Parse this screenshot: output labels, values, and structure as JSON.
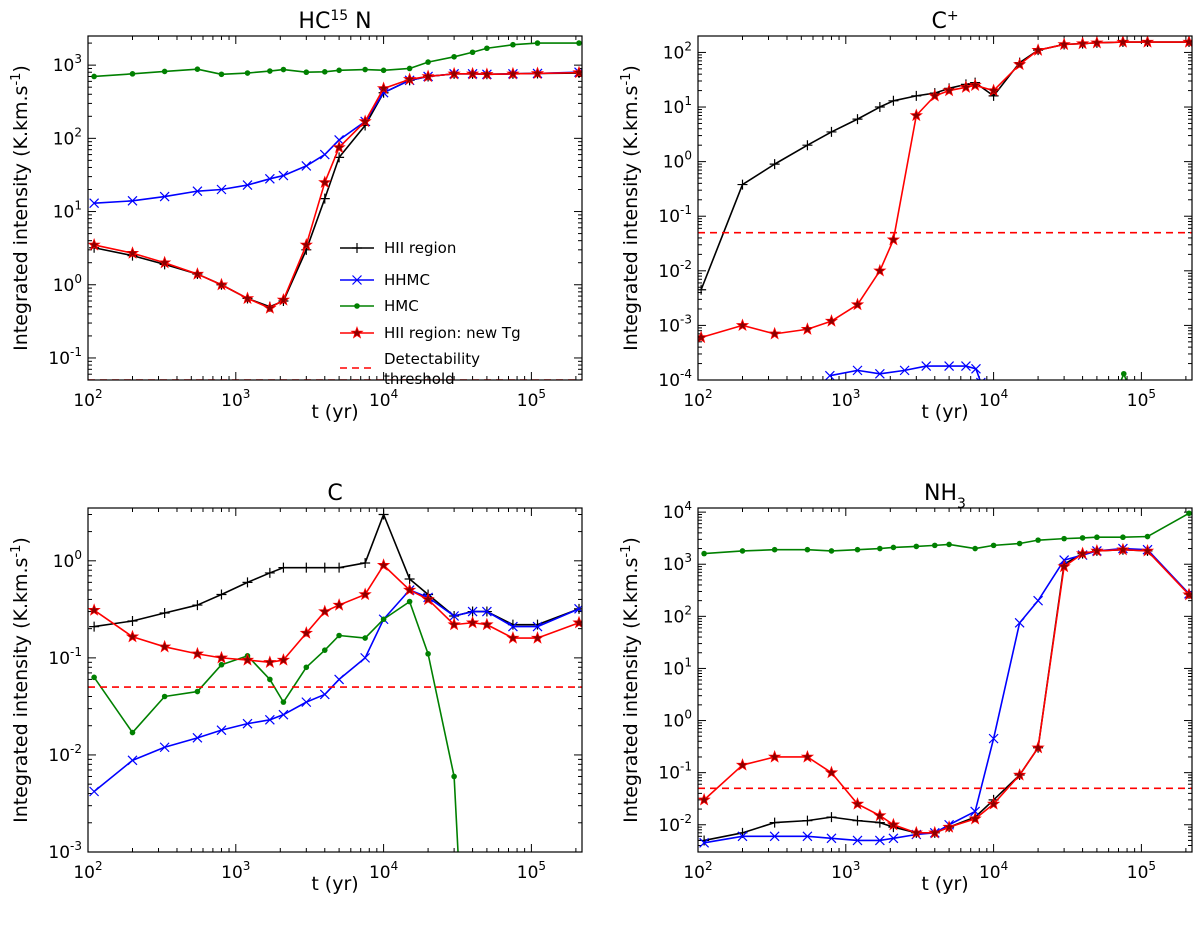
{
  "chart_data": [
    {
      "type": "line",
      "title": "HC15N",
      "title_display": {
        "base": "HC",
        "sup": "15",
        "rest": " N"
      },
      "xlabel": "t (yr)",
      "ylabel": "Integrated intensity (K.km.s-1)",
      "x_scale": "log",
      "y_scale": "log",
      "xlim": [
        100,
        220000
      ],
      "ylim": [
        0.05,
        2500
      ],
      "x_ticks": [
        {
          "v": 100,
          "exp": "2"
        },
        {
          "v": 1000,
          "exp": "3"
        },
        {
          "v": 10000,
          "exp": "4"
        },
        {
          "v": 100000,
          "exp": "5"
        }
      ],
      "y_ticks": [
        {
          "v": 0.1,
          "exp": "-1"
        },
        {
          "v": 1,
          "exp": "0"
        },
        {
          "v": 10,
          "exp": "1"
        },
        {
          "v": 100,
          "exp": "2"
        },
        {
          "v": 1000,
          "exp": "3"
        }
      ],
      "legend": {
        "placement": "center-right",
        "entries": [
          {
            "series": 0,
            "text": "HII region"
          },
          {
            "series": 1,
            "text": "HHMC"
          },
          {
            "series": 2,
            "text": "HMC"
          },
          {
            "series": 3,
            "text": "HII region: new Tg"
          },
          {
            "series": 4,
            "text": "Detectability threshold",
            "text_lines": [
              "Detectability",
              "threshold"
            ]
          }
        ]
      },
      "series": [
        {
          "name": "HII region",
          "color": "#000000",
          "marker": "plus",
          "x": [
            110,
            200,
            330,
            550,
            800,
            1200,
            1700,
            2100,
            3000,
            4000,
            5000,
            7500,
            10000,
            15000,
            20000,
            30000,
            40000,
            50000,
            75000,
            110000,
            210000
          ],
          "y": [
            3.2,
            2.5,
            1.9,
            1.4,
            1.0,
            0.65,
            0.5,
            0.6,
            3.0,
            15,
            55,
            150,
            420,
            620,
            700,
            760,
            760,
            750,
            760,
            770,
            780
          ]
        },
        {
          "name": "HHMC",
          "color": "#0000ff",
          "marker": "x",
          "x": [
            110,
            200,
            330,
            550,
            800,
            1200,
            1700,
            2100,
            3000,
            4000,
            5000,
            7500,
            10000,
            15000,
            20000,
            30000,
            40000,
            50000,
            75000,
            110000,
            210000
          ],
          "y": [
            13,
            14,
            16,
            19,
            20,
            23,
            28,
            31,
            42,
            60,
            95,
            170,
            420,
            620,
            700,
            760,
            760,
            750,
            760,
            770,
            800
          ]
        },
        {
          "name": "HMC",
          "color": "#008000",
          "marker": "dot",
          "x": [
            110,
            200,
            330,
            550,
            800,
            1200,
            1700,
            2100,
            3000,
            4000,
            5000,
            7500,
            10000,
            15000,
            20000,
            30000,
            40000,
            50000,
            75000,
            110000,
            210000
          ],
          "y": [
            700,
            760,
            820,
            880,
            750,
            780,
            830,
            870,
            800,
            810,
            850,
            870,
            850,
            900,
            1100,
            1300,
            1500,
            1700,
            1900,
            2000,
            2000
          ]
        },
        {
          "name": "HII region: new Tg",
          "color": "#ff0000",
          "marker": "star",
          "marker_fill": "#8b0000",
          "x": [
            110,
            200,
            330,
            550,
            800,
            1200,
            1700,
            2100,
            3000,
            4000,
            5000,
            7500,
            10000,
            15000,
            20000,
            30000,
            40000,
            50000,
            75000,
            110000,
            210000
          ],
          "y": [
            3.5,
            2.7,
            2.0,
            1.4,
            1.0,
            0.65,
            0.48,
            0.62,
            3.5,
            25,
            75,
            170,
            480,
            640,
            700,
            760,
            760,
            750,
            760,
            770,
            790
          ]
        },
        {
          "name": "Detectability threshold",
          "color": "#ff0000",
          "style": "dashed",
          "x": [
            100,
            220000
          ],
          "y": [
            0.05,
            0.05
          ]
        }
      ]
    },
    {
      "type": "line",
      "title": "C+",
      "title_display": {
        "base": "C",
        "sup": "+",
        "rest": ""
      },
      "xlabel": "t (yr)",
      "ylabel": "Integrated intensity (K.km.s-1)",
      "x_scale": "log",
      "y_scale": "log",
      "xlim": [
        100,
        220000
      ],
      "ylim": [
        0.0001,
        200
      ],
      "x_ticks": [
        {
          "v": 100,
          "exp": "2"
        },
        {
          "v": 1000,
          "exp": "3"
        },
        {
          "v": 10000,
          "exp": "4"
        },
        {
          "v": 100000,
          "exp": "5"
        }
      ],
      "y_ticks": [
        {
          "v": 0.0001,
          "exp": "-4"
        },
        {
          "v": 0.001,
          "exp": "-3"
        },
        {
          "v": 0.01,
          "exp": "-2"
        },
        {
          "v": 0.1,
          "exp": "-1"
        },
        {
          "v": 1,
          "exp": "0"
        },
        {
          "v": 10,
          "exp": "1"
        },
        {
          "v": 100,
          "exp": "2"
        }
      ],
      "series": [
        {
          "name": "HII region",
          "color": "#000000",
          "marker": "plus",
          "x": [
            105,
            200,
            330,
            550,
            800,
            1200,
            1700,
            2100,
            3000,
            4000,
            5000,
            6500,
            7500,
            10000,
            15000,
            20000,
            30000,
            40000,
            50000,
            75000,
            110000,
            210000
          ],
          "y": [
            0.0045,
            0.38,
            0.9,
            2.0,
            3.5,
            6.0,
            10,
            13,
            16,
            18,
            22,
            26,
            28,
            16,
            65,
            110,
            140,
            145,
            150,
            155,
            155,
            155
          ]
        },
        {
          "name": "HHMC",
          "color": "#0000ff",
          "marker": "x",
          "x": [
            780,
            1200,
            1700,
            2500,
            3500,
            5000,
            6500,
            7600,
            8200
          ],
          "y": [
            0.00012,
            0.00015,
            0.00013,
            0.00015,
            0.00018,
            0.00018,
            0.00018,
            0.00016,
            9e-05
          ]
        },
        {
          "name": "HMC",
          "color": "#008000",
          "marker": "dot",
          "x": [
            72000,
            76000,
            80000
          ],
          "y": [
            9e-05,
            0.00013,
            9e-05
          ]
        },
        {
          "name": "HII region: new Tg",
          "color": "#ff0000",
          "marker": "star",
          "marker_fill": "#8b0000",
          "x": [
            105,
            200,
            330,
            550,
            800,
            1200,
            1700,
            2100,
            3000,
            4000,
            5000,
            6500,
            7500,
            10000,
            15000,
            20000,
            30000,
            40000,
            50000,
            75000,
            110000,
            210000
          ],
          "y": [
            0.0006,
            0.001,
            0.0007,
            0.00085,
            0.0012,
            0.0024,
            0.01,
            0.037,
            7.0,
            16,
            20,
            23,
            25,
            20,
            60,
            110,
            140,
            145,
            150,
            155,
            155,
            155
          ]
        },
        {
          "name": "Detectability threshold",
          "color": "#ff0000",
          "style": "dashed",
          "x": [
            100,
            220000
          ],
          "y": [
            0.05,
            0.05
          ]
        }
      ]
    },
    {
      "type": "line",
      "title": "C",
      "title_display": {
        "base": "C",
        "sup": "",
        "rest": ""
      },
      "xlabel": "t (yr)",
      "ylabel": "Integrated intensity (K.km.s-1)",
      "x_scale": "log",
      "y_scale": "log",
      "xlim": [
        100,
        220000
      ],
      "ylim": [
        0.001,
        3.5
      ],
      "x_ticks": [
        {
          "v": 100,
          "exp": "2"
        },
        {
          "v": 1000,
          "exp": "3"
        },
        {
          "v": 10000,
          "exp": "4"
        },
        {
          "v": 100000,
          "exp": "5"
        }
      ],
      "y_ticks": [
        {
          "v": 0.001,
          "exp": "-3"
        },
        {
          "v": 0.01,
          "exp": "-2"
        },
        {
          "v": 0.1,
          "exp": "-1"
        },
        {
          "v": 1,
          "exp": "0"
        }
      ],
      "series": [
        {
          "name": "HII region",
          "color": "#000000",
          "marker": "plus",
          "x": [
            110,
            200,
            330,
            550,
            800,
            1200,
            1700,
            2100,
            3000,
            4000,
            5000,
            7500,
            10000,
            15000,
            20000,
            30000,
            40000,
            50000,
            75000,
            110000,
            210000
          ],
          "y": [
            0.21,
            0.24,
            0.29,
            0.35,
            0.45,
            0.6,
            0.75,
            0.85,
            0.85,
            0.85,
            0.85,
            0.95,
            3.0,
            0.65,
            0.45,
            0.27,
            0.3,
            0.3,
            0.22,
            0.22,
            0.32
          ]
        },
        {
          "name": "HHMC",
          "color": "#0000ff",
          "marker": "x",
          "x": [
            110,
            200,
            330,
            550,
            800,
            1200,
            1700,
            2100,
            3000,
            4000,
            5000,
            7500,
            10000,
            15000,
            20000,
            30000,
            40000,
            50000,
            75000,
            110000,
            210000
          ],
          "y": [
            0.0042,
            0.0088,
            0.012,
            0.015,
            0.018,
            0.021,
            0.023,
            0.026,
            0.035,
            0.042,
            0.06,
            0.1,
            0.25,
            0.5,
            0.42,
            0.27,
            0.3,
            0.3,
            0.21,
            0.21,
            0.32
          ]
        },
        {
          "name": "HMC",
          "color": "#008000",
          "marker": "dot",
          "x": [
            110,
            200,
            330,
            550,
            800,
            1200,
            1700,
            2100,
            3000,
            4000,
            5000,
            7500,
            10000,
            15000,
            20000,
            30000,
            32000
          ],
          "y": [
            0.063,
            0.017,
            0.04,
            0.045,
            0.085,
            0.105,
            0.06,
            0.035,
            0.08,
            0.12,
            0.17,
            0.16,
            0.25,
            0.38,
            0.11,
            0.006,
            0.0009
          ]
        },
        {
          "name": "HII region: new Tg",
          "color": "#ff0000",
          "marker": "star",
          "marker_fill": "#8b0000",
          "x": [
            110,
            200,
            330,
            550,
            800,
            1200,
            1700,
            2100,
            3000,
            4000,
            5000,
            7500,
            10000,
            15000,
            20000,
            30000,
            40000,
            50000,
            75000,
            110000,
            210000
          ],
          "y": [
            0.31,
            0.165,
            0.13,
            0.11,
            0.1,
            0.095,
            0.09,
            0.095,
            0.18,
            0.3,
            0.35,
            0.45,
            0.9,
            0.5,
            0.4,
            0.22,
            0.23,
            0.22,
            0.16,
            0.16,
            0.23
          ]
        },
        {
          "name": "Detectability threshold",
          "color": "#ff0000",
          "style": "dashed",
          "x": [
            100,
            220000
          ],
          "y": [
            0.05,
            0.05
          ]
        }
      ]
    },
    {
      "type": "line",
      "title": "NH3",
      "title_display": {
        "base": "NH",
        "sub": "3",
        "rest": ""
      },
      "xlabel": "t (yr)",
      "ylabel": "Integrated intensity (K.km.s-1)",
      "x_scale": "log",
      "y_scale": "log",
      "xlim": [
        100,
        220000
      ],
      "ylim": [
        0.003,
        12000
      ],
      "x_ticks": [
        {
          "v": 100,
          "exp": "2"
        },
        {
          "v": 1000,
          "exp": "3"
        },
        {
          "v": 10000,
          "exp": "4"
        },
        {
          "v": 100000,
          "exp": "5"
        }
      ],
      "y_ticks": [
        {
          "v": 0.01,
          "exp": "-2"
        },
        {
          "v": 0.1,
          "exp": "-1"
        },
        {
          "v": 1,
          "exp": "0"
        },
        {
          "v": 10,
          "exp": "1"
        },
        {
          "v": 100,
          "exp": "2"
        },
        {
          "v": 1000,
          "exp": "3"
        },
        {
          "v": 10000,
          "exp": "4"
        }
      ],
      "series": [
        {
          "name": "HII region",
          "color": "#000000",
          "marker": "plus",
          "x": [
            110,
            200,
            330,
            550,
            800,
            1200,
            1700,
            2100,
            3000,
            4000,
            5000,
            7500,
            10000,
            15000,
            20000,
            30000,
            40000,
            50000,
            75000,
            110000,
            210000
          ],
          "y": [
            0.005,
            0.007,
            0.011,
            0.012,
            0.014,
            0.012,
            0.011,
            0.009,
            0.007,
            0.007,
            0.009,
            0.014,
            0.03,
            0.09,
            0.3,
            1000,
            1600,
            1800,
            1900,
            1800,
            270
          ]
        },
        {
          "name": "HHMC",
          "color": "#0000ff",
          "marker": "x",
          "x": [
            110,
            200,
            330,
            550,
            800,
            1200,
            1700,
            2100,
            3000,
            4000,
            5000,
            7500,
            10000,
            15000,
            20000,
            30000,
            40000,
            50000,
            75000,
            110000,
            210000
          ],
          "y": [
            0.0045,
            0.006,
            0.006,
            0.006,
            0.0055,
            0.005,
            0.005,
            0.0055,
            0.0065,
            0.007,
            0.01,
            0.018,
            0.45,
            75,
            200,
            1200,
            1500,
            1800,
            2000,
            1900,
            270
          ]
        },
        {
          "name": "HMC",
          "color": "#008000",
          "marker": "dot",
          "x": [
            110,
            200,
            330,
            550,
            800,
            1200,
            1700,
            2100,
            3000,
            4000,
            5000,
            7500,
            10000,
            15000,
            20000,
            30000,
            40000,
            50000,
            75000,
            110000,
            210000
          ],
          "y": [
            1600,
            1800,
            1900,
            1900,
            1800,
            1900,
            2000,
            2100,
            2200,
            2300,
            2400,
            2000,
            2300,
            2500,
            2900,
            3100,
            3200,
            3300,
            3300,
            3400,
            9500
          ]
        },
        {
          "name": "HII region: new Tg",
          "color": "#ff0000",
          "marker": "star",
          "marker_fill": "#8b0000",
          "x": [
            110,
            200,
            330,
            550,
            800,
            1200,
            1700,
            2100,
            3000,
            4000,
            5000,
            7500,
            10000,
            15000,
            20000,
            30000,
            40000,
            50000,
            75000,
            110000,
            210000
          ],
          "y": [
            0.03,
            0.14,
            0.2,
            0.2,
            0.1,
            0.025,
            0.015,
            0.01,
            0.007,
            0.007,
            0.009,
            0.013,
            0.025,
            0.09,
            0.3,
            900,
            1600,
            1800,
            1900,
            1800,
            260
          ]
        },
        {
          "name": "Detectability threshold",
          "color": "#ff0000",
          "style": "dashed",
          "x": [
            100,
            220000
          ],
          "y": [
            0.05,
            0.05
          ]
        }
      ]
    }
  ]
}
